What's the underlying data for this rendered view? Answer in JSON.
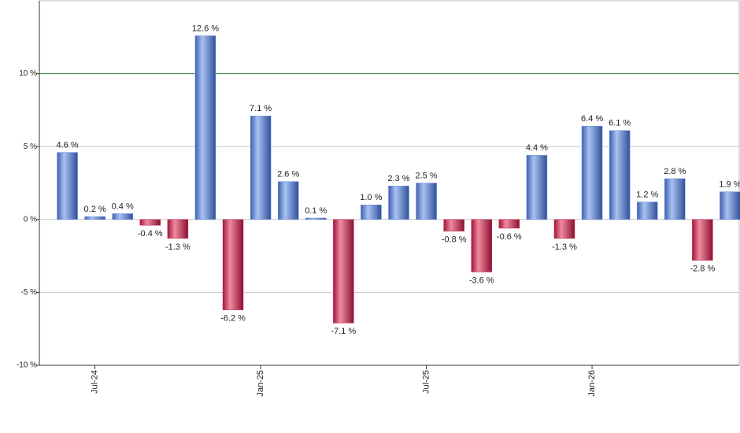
{
  "chart_data": {
    "type": "bar",
    "categories": [
      null,
      "Jul-24",
      null,
      null,
      null,
      null,
      null,
      "Jan-25",
      null,
      null,
      null,
      null,
      null,
      "Jul-25",
      null,
      null,
      null,
      null,
      null,
      "Jan-26",
      null,
      null,
      null,
      null,
      null
    ],
    "values": [
      4.6,
      0.2,
      0.4,
      -0.4,
      -1.3,
      12.6,
      -6.2,
      7.1,
      2.6,
      0.1,
      -7.1,
      1.0,
      2.3,
      2.5,
      -0.8,
      -3.6,
      -0.6,
      4.4,
      -1.3,
      6.4,
      6.1,
      1.2,
      2.8,
      -2.8,
      1.9
    ],
    "value_labels": [
      "4.6 %",
      "0.2 %",
      "0.4 %",
      "-0.4 %",
      "-1.3 %",
      "12.6 %",
      "-6.2 %",
      "7.1 %",
      "2.6 %",
      "0.1 %",
      "-7.1 %",
      "1.0 %",
      "2.3 %",
      "2.5 %",
      "-0.8 %",
      "-3.6 %",
      "-0.6 %",
      "4.4 %",
      "-1.3 %",
      "6.4 %",
      "6.1 %",
      "1.2 %",
      "2.8 %",
      "-2.8 %",
      "1.9 %"
    ],
    "positive_color": "#6a8fdc",
    "negative_color": "#c8305a",
    "ylim": [
      -10,
      15
    ],
    "yticks": [
      {
        "value": -10,
        "label": "-10 %"
      },
      {
        "value": -5,
        "label": "-5 %"
      },
      {
        "value": 0,
        "label": "0 %"
      },
      {
        "value": 5,
        "label": "5 %"
      },
      {
        "value": 10,
        "label": "10 %"
      }
    ],
    "grid": true,
    "highlight_line": {
      "value": 10,
      "color": "#2e7d32"
    }
  }
}
